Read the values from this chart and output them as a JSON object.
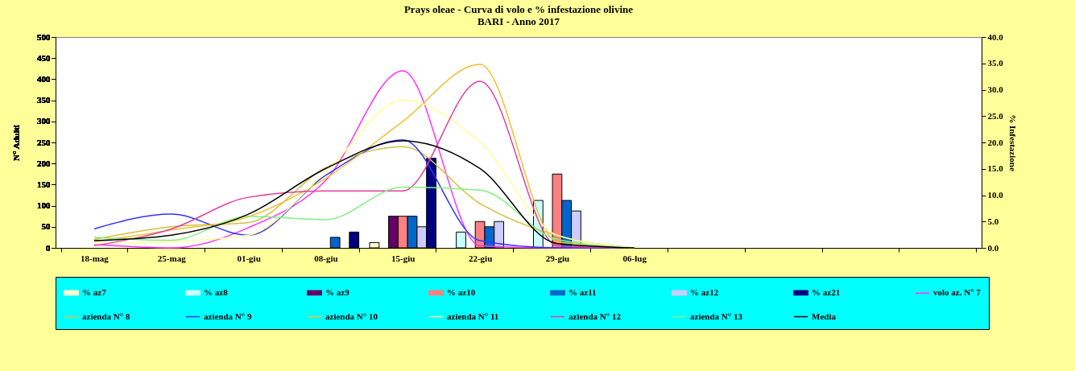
{
  "chart_data": {
    "type": "bar",
    "title": "Prays oleae - Curva di volo e % infestazione olivine",
    "subtitle": "BARI - Anno 2017",
    "ylabel": "N° Adulti",
    "y2label": "% Infestazione",
    "categories": [
      "18-mag",
      "25-mag",
      "01-giu",
      "08-giu",
      "15-giu",
      "22-giu",
      "29-giu",
      "06-lug",
      null,
      null,
      null,
      null
    ],
    "ylim": [
      0,
      500
    ],
    "yticks": [
      0,
      50,
      100,
      150,
      200,
      250,
      300,
      350,
      400,
      450,
      500
    ],
    "y2lim": [
      0,
      40
    ],
    "y2ticks": [
      {
        "value": 0,
        "label": "0.0"
      },
      {
        "value": 5,
        "label": "5.0"
      },
      {
        "value": 10,
        "label": "10.0"
      },
      {
        "value": 15,
        "label": "15.0"
      },
      {
        "value": 20,
        "label": "20.0"
      },
      {
        "value": 25,
        "label": "25.0"
      },
      {
        "value": 30,
        "label": "30.0"
      },
      {
        "value": 35,
        "label": "35.0"
      },
      {
        "value": 40,
        "label": "40.0"
      }
    ],
    "grid": false,
    "legend": "bottom",
    "marker": "none",
    "line_style": "solid",
    "series": [
      {
        "name": "% az7",
        "axis": "y2",
        "color": "#ffffcc",
        "values": [
          null,
          null,
          null,
          null,
          1.0,
          null,
          null,
          null,
          null,
          null,
          null,
          null
        ]
      },
      {
        "name": "% az8",
        "axis": "y2",
        "color": "#ccffff",
        "values": [
          null,
          null,
          null,
          null,
          null,
          3.0,
          9.0,
          null,
          null,
          null,
          null,
          null
        ]
      },
      {
        "name": "% az9",
        "axis": "y2",
        "color": "#660066",
        "values": [
          null,
          null,
          null,
          null,
          6.0,
          null,
          null,
          null,
          null,
          null,
          null,
          null
        ]
      },
      {
        "name": "% az10",
        "axis": "y2",
        "color": "#ff8080",
        "values": [
          null,
          null,
          null,
          null,
          6.0,
          5.0,
          14.0,
          null,
          null,
          null,
          null,
          null
        ]
      },
      {
        "name": "% az11",
        "axis": "y2",
        "color": "#0066cc",
        "values": [
          null,
          null,
          null,
          2.0,
          6.0,
          4.0,
          9.0,
          null,
          null,
          null,
          null,
          null
        ]
      },
      {
        "name": "% az12",
        "axis": "y2",
        "color": "#ccccff",
        "values": [
          null,
          null,
          null,
          null,
          4.0,
          5.0,
          7.0,
          null,
          null,
          null,
          null,
          null
        ]
      },
      {
        "name": "% az21",
        "axis": "y2",
        "color": "#000080",
        "values": [
          null,
          null,
          null,
          3.0,
          17.0,
          null,
          null,
          null,
          null,
          null,
          null,
          null
        ]
      },
      {
        "name": "volo az. N° 7",
        "type": "line",
        "color": "#ff33ff",
        "values": [
          8,
          0,
          48,
          160,
          420,
          5,
          0,
          0,
          null,
          null,
          null,
          null
        ]
      },
      {
        "name": "azienda N° 8",
        "type": "line",
        "color": "#d4c040",
        "values": [
          20,
          50,
          60,
          190,
          240,
          105,
          29,
          0,
          null,
          null,
          null,
          null
        ]
      },
      {
        "name": "azienda N° 9",
        "type": "line",
        "color": "#3333ff",
        "values": [
          45,
          80,
          30,
          172,
          256,
          17,
          0,
          0,
          null,
          null,
          null,
          null
        ]
      },
      {
        "name": "azienda N° 10",
        "type": "line",
        "color": "#f0c030",
        "values": [
          15,
          42,
          74,
          165,
          300,
          435,
          15,
          0,
          null,
          null,
          null,
          null
        ]
      },
      {
        "name": "azienda N° 11",
        "type": "line",
        "color": "#ffff99",
        "values": [
          10,
          15,
          30,
          180,
          350,
          250,
          30,
          0,
          null,
          null,
          null,
          null
        ]
      },
      {
        "name": "azienda N° 12",
        "type": "line",
        "color": "#e040a0",
        "values": [
          5,
          45,
          120,
          135,
          135,
          395,
          5,
          0,
          null,
          null,
          null,
          null
        ]
      },
      {
        "name": "azienda N° 13",
        "type": "line",
        "color": "#80f080",
        "values": [
          25,
          18,
          75,
          67,
          144,
          137,
          20,
          0,
          null,
          null,
          null,
          null
        ]
      },
      {
        "name": "Media",
        "type": "line",
        "color": "#000000",
        "values": [
          17,
          30,
          80,
          188,
          254,
          188,
          10,
          0,
          null,
          null,
          null,
          null
        ]
      }
    ]
  }
}
